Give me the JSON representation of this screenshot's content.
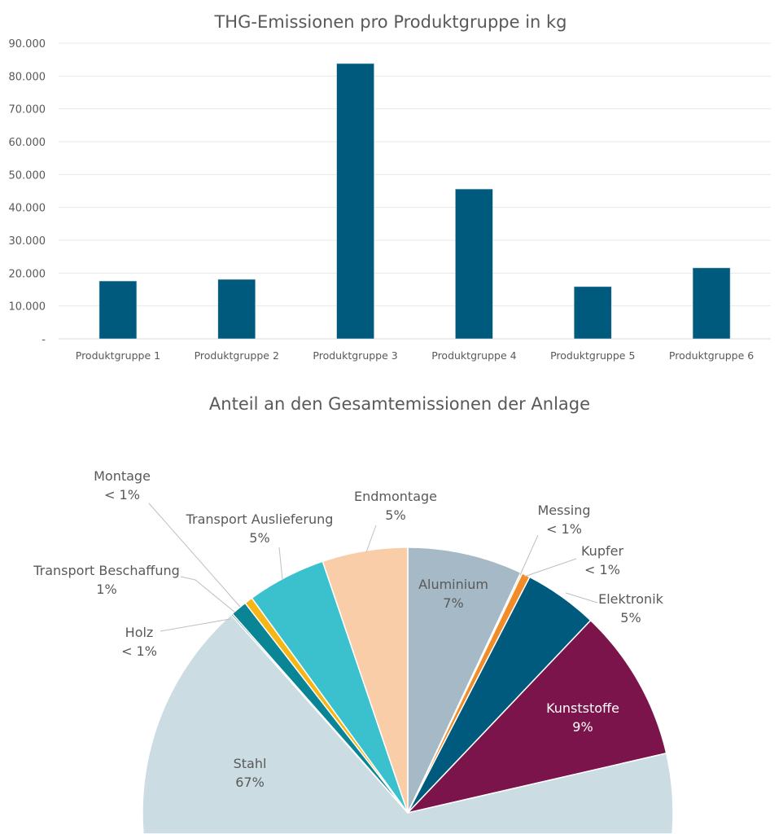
{
  "chart_data": [
    {
      "type": "bar",
      "title": "THG-Emissionen pro Produktgruppe in kg",
      "categories": [
        "Produktgruppe 1",
        "Produktgruppe 2",
        "Produktgruppe 3",
        "Produktgruppe 4",
        "Produktgruppe 5",
        "Produktgruppe 6"
      ],
      "values": [
        17600,
        18100,
        83800,
        45600,
        15900,
        21600
      ],
      "ylim": [
        0,
        90000
      ],
      "yticks": [
        0,
        10000,
        20000,
        30000,
        40000,
        50000,
        60000,
        70000,
        80000,
        90000
      ],
      "ytick_labels": [
        "-",
        "10.000",
        "20.000",
        "30.000",
        "40.000",
        "50.000",
        "60.000",
        "70.000",
        "80.000",
        "90.000"
      ],
      "grid": true,
      "color": "#005A7D"
    },
    {
      "type": "pie",
      "title": "Anteil an den Gesamtemissionen der Anlage",
      "slices": [
        {
          "name": "Aluminium",
          "value": 7.0,
          "label": "7%",
          "color": "#A5BAC6"
        },
        {
          "name": "Messing",
          "value": 0.1,
          "label": "< 1%",
          "color": "#D9D9D9"
        },
        {
          "name": "Kupfer",
          "value": 0.5,
          "label": "< 1%",
          "color": "#F28C28"
        },
        {
          "name": "Elektronik",
          "value": 4.5,
          "label": "5%",
          "color": "#005A7D"
        },
        {
          "name": "Kunststoffe",
          "value": 9.3,
          "label": "9%",
          "color": "#7A144B"
        },
        {
          "name": "Stahl",
          "value": 67.0,
          "label": "67%",
          "color": "#CCDCE3"
        },
        {
          "name": "Holz",
          "value": 0.1,
          "label": "< 1%",
          "color": "#0E6E80"
        },
        {
          "name": "Transport Beschaffung",
          "value": 1.0,
          "label": "1%",
          "color": "#0A8596"
        },
        {
          "name": "Montage",
          "value": 0.5,
          "label": "< 1%",
          "color": "#F6B617"
        },
        {
          "name": "Transport Auslieferung",
          "value": 4.8,
          "label": "5%",
          "color": "#3BC1CD"
        },
        {
          "name": "Endmontage",
          "value": 5.2,
          "label": "5%",
          "color": "#F8CDA8"
        }
      ]
    }
  ]
}
